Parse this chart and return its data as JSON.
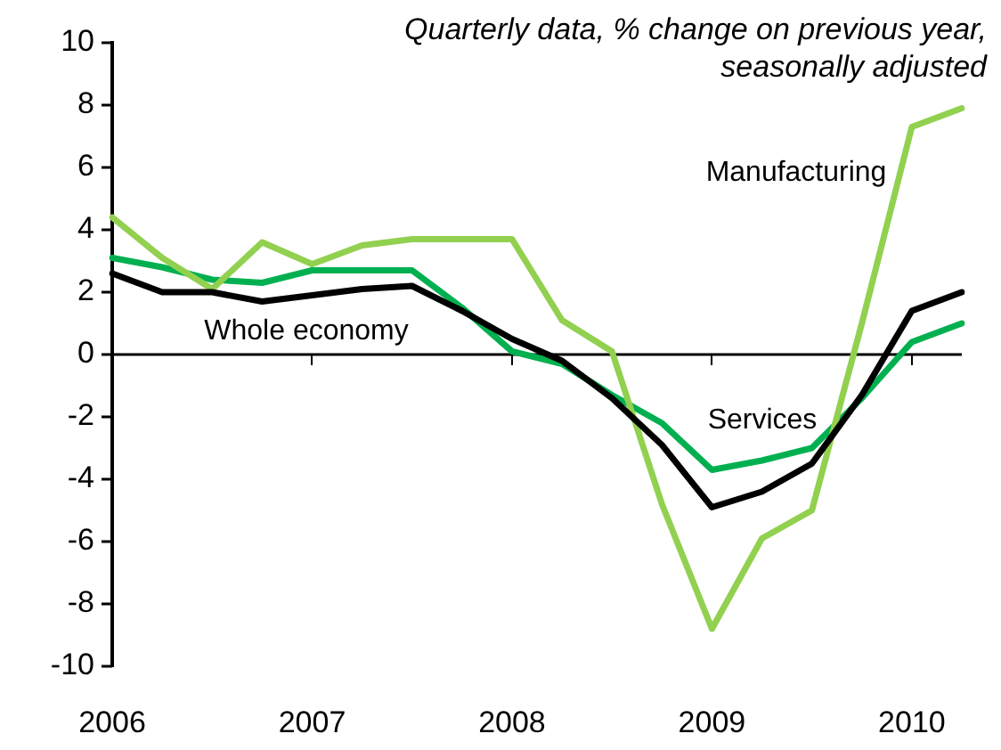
{
  "chart_data": {
    "type": "line",
    "title": "Quarterly data, % change on previous year, seasonally adjusted",
    "categories": [
      "2006",
      null,
      null,
      null,
      "2007",
      null,
      null,
      null,
      "2008",
      null,
      null,
      null,
      "2009",
      null,
      null,
      null,
      "2010",
      null
    ],
    "series": [
      {
        "name": "Whole economy",
        "color": "#000000",
        "values": [
          2.6,
          2.0,
          2.0,
          1.7,
          1.9,
          2.1,
          2.2,
          1.4,
          0.5,
          -0.2,
          -1.4,
          -2.9,
          -4.9,
          -4.4,
          -3.5,
          -1.3,
          1.4,
          2.0
        ]
      },
      {
        "name": "Manufacturing",
        "color": "#92d050",
        "values": [
          4.4,
          3.1,
          2.1,
          3.6,
          2.9,
          3.5,
          3.7,
          3.7,
          3.7,
          1.1,
          0.1,
          -4.8,
          -8.8,
          -5.9,
          -5.0,
          1.0,
          7.3,
          7.9
        ]
      },
      {
        "name": "Services",
        "color": "#00b050",
        "values": [
          3.1,
          2.8,
          2.4,
          2.3,
          2.7,
          2.7,
          2.7,
          1.5,
          0.1,
          -0.3,
          -1.3,
          -2.2,
          -3.7,
          -3.4,
          -3.0,
          -1.4,
          0.4,
          1.0
        ]
      }
    ],
    "ref_lines": [
      {
        "axis": "y",
        "value": 0,
        "color": "#000000"
      }
    ],
    "ylim": [
      -10,
      10
    ],
    "yticks": [
      -10,
      -8,
      -6,
      -4,
      -2,
      0,
      2,
      4,
      6,
      8,
      10
    ],
    "grid": false,
    "legend": false,
    "marker": "none",
    "line_style": "solid"
  }
}
